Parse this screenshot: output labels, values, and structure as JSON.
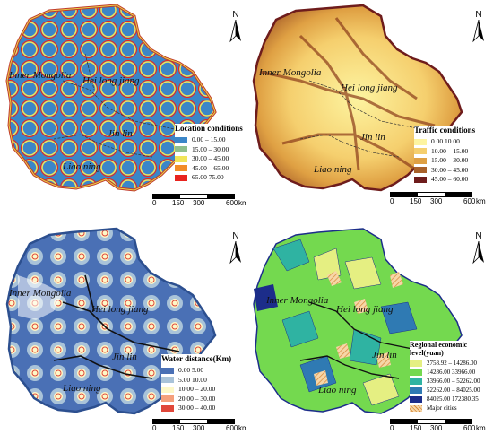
{
  "provinces": {
    "inner_mongolia": "Inner Mongolia",
    "heilongjiang": "Hei long jiang",
    "jilin": "Jin lin",
    "liaoning": "Liao ning"
  },
  "north_label": "N",
  "scale": {
    "ticks": [
      "0",
      "150",
      "300",
      "600"
    ],
    "unit": "km"
  },
  "panels": [
    {
      "legend_title": "Location conditions",
      "classes": [
        {
          "label": "0.00 – 15.00",
          "color": "#3b86c8"
        },
        {
          "label": "15.00 – 30.00",
          "color": "#8fbf8c"
        },
        {
          "label": "30.00 – 45.00",
          "color": "#f1e55a"
        },
        {
          "label": "45.00 – 65.00",
          "color": "#f28c28"
        },
        {
          "label": "65.00   75.00",
          "color": "#e8231e"
        }
      ]
    },
    {
      "legend_title": "Traffic conditions",
      "classes": [
        {
          "label": "0.00   10.00",
          "color": "#fdf4a0"
        },
        {
          "label": "10.00 – 15.00",
          "color": "#f5cf6e"
        },
        {
          "label": "15.00 – 30.00",
          "color": "#dfa043"
        },
        {
          "label": "30.00 – 45.00",
          "color": "#a9612a"
        },
        {
          "label": "45.00 – 60.00",
          "color": "#6e1c1c"
        }
      ]
    },
    {
      "legend_title": "Water distance(Km)",
      "classes": [
        {
          "label": "0.00   5.00",
          "color": "#4a70b5"
        },
        {
          "label": "5.00   10.00",
          "color": "#a9c3d9"
        },
        {
          "label": "10.00 – 20.00",
          "color": "#fdf8c8"
        },
        {
          "label": "20.00 – 30.00",
          "color": "#f5a07c"
        },
        {
          "label": "30.00 – 40.00",
          "color": "#e0473a"
        }
      ]
    },
    {
      "legend_title": "Regional economic level(yuan)",
      "classes": [
        {
          "label": "2758.92 – 14286.00",
          "color": "#e5ef82"
        },
        {
          "label": "14286.00   33966.00",
          "color": "#74d94f"
        },
        {
          "label": "33966.00 – 52262.00",
          "color": "#2fb3a2"
        },
        {
          "label": "52262.00 – 84025.00",
          "color": "#2f7ab3"
        },
        {
          "label": "84025.00   172380.35",
          "color": "#1c2d8a"
        }
      ],
      "major_cities_label": "Major cities",
      "major_cities_color": "#f2b85c"
    }
  ]
}
